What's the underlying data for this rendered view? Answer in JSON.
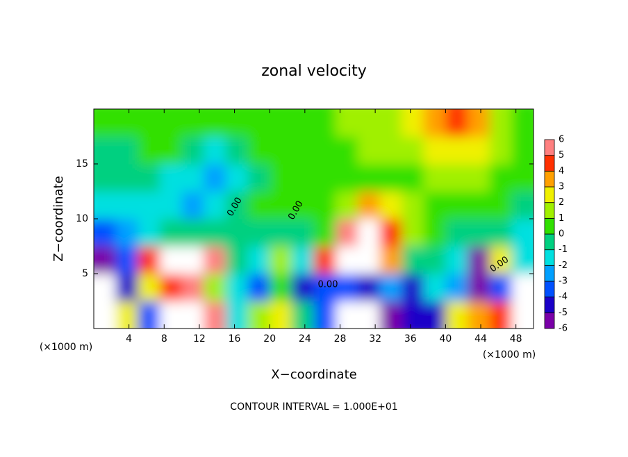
{
  "chart_data": {
    "type": "contour",
    "title": "zonal velocity",
    "x_label": "X−coordinate",
    "y_label": "Z−coordinate",
    "x_unit": "(×1000 m)",
    "x_unit_right": "(×1000 m)",
    "footer": "CONTOUR INTERVAL = 1.000E+01",
    "contour_labels": [
      "0.00",
      "0.00",
      "0.00",
      "0.00"
    ],
    "xlim": [
      0,
      50
    ],
    "ylim": [
      0,
      20
    ],
    "xticks": [
      4,
      8,
      12,
      16,
      20,
      24,
      28,
      32,
      36,
      40,
      44,
      48
    ],
    "yticks": [
      5,
      10,
      15
    ],
    "x": [
      1.25,
      3.75,
      6.25,
      8.75,
      11.25,
      13.75,
      16.25,
      18.75,
      21.25,
      23.75,
      26.25,
      28.75,
      31.25,
      33.75,
      36.25,
      38.75,
      41.25,
      43.75,
      46.25,
      48.75
    ],
    "y": [
      1.25,
      3.75,
      6.25,
      8.75,
      11.25,
      13.75,
      16.25,
      18.75
    ],
    "z": [
      [
        7,
        3,
        -3,
        7,
        8,
        6,
        -1,
        2,
        3,
        0,
        -3,
        8,
        7,
        -5,
        -4,
        -4,
        3,
        4,
        5,
        7
      ],
      [
        7,
        -4,
        3,
        5,
        6,
        2,
        -1,
        -3,
        0.5,
        -4,
        -3,
        -3,
        -4,
        -2,
        -4,
        -1,
        -2,
        -5,
        -3,
        7
      ],
      [
        -5,
        -3,
        5,
        8,
        10,
        6,
        0,
        -1,
        2,
        -1,
        5,
        9,
        10,
        4,
        0,
        -0.5,
        -1,
        -5,
        3,
        -1
      ],
      [
        -3,
        -2,
        -1,
        -0.5,
        -0.5,
        -0.5,
        -0.5,
        0,
        -0.5,
        -0.5,
        1,
        6,
        8,
        5,
        2,
        0.5,
        0,
        0,
        -0.5,
        -1
      ],
      [
        -1,
        -1,
        -1,
        -1.5,
        -2,
        -1.5,
        -0.5,
        0.5,
        0.5,
        0.5,
        1,
        2,
        4,
        3,
        1.5,
        1,
        1,
        1,
        0.5,
        0
      ],
      [
        -0.5,
        -0.5,
        -0.5,
        -1,
        -1.5,
        -2,
        -1,
        0,
        0.5,
        0.5,
        0.5,
        0.8,
        1,
        1,
        1,
        1.2,
        1.5,
        1.5,
        1,
        0.5
      ],
      [
        0,
        0,
        0.3,
        0.5,
        -0.5,
        -1,
        0,
        0.5,
        0.5,
        0.5,
        0.8,
        1,
        1.2,
        1.5,
        2,
        2.5,
        3,
        2.5,
        1.5,
        1
      ],
      [
        0.5,
        0.5,
        0.5,
        0.5,
        0.5,
        0.5,
        0.5,
        0.5,
        0.5,
        0.8,
        1,
        1.2,
        1.5,
        2,
        2.5,
        3.5,
        4.5,
        4,
        2,
        1
      ]
    ],
    "levels": [
      -6,
      -5,
      -4,
      -3,
      -2,
      -1,
      0,
      1,
      2,
      3,
      4,
      5,
      6
    ],
    "colors": [
      "#7a00a8",
      "#1a00c8",
      "#0050ff",
      "#00a0ff",
      "#00e0e0",
      "#00d080",
      "#30e000",
      "#a0f000",
      "#f0f000",
      "#ffa000",
      "#ff3000",
      "#ff8080"
    ],
    "over_color": "#ffffff",
    "under_color": "#ffffff"
  }
}
